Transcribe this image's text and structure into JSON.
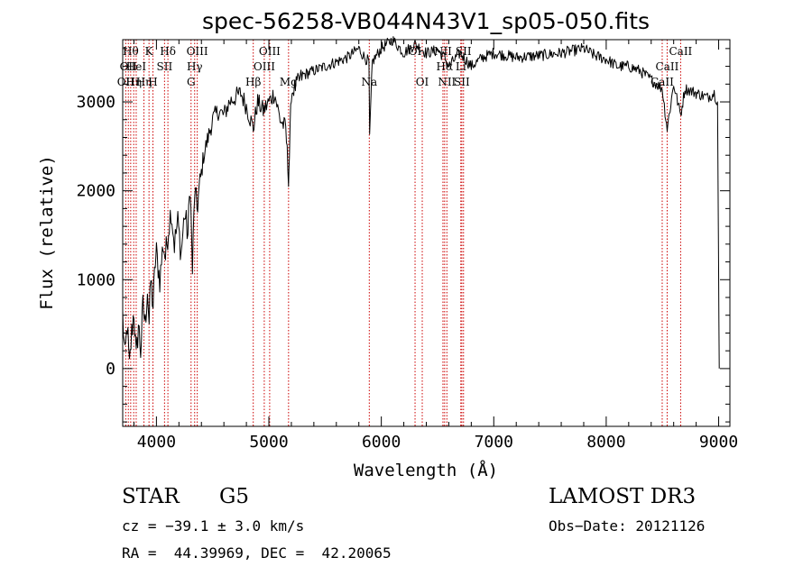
{
  "chart_data": {
    "type": "line",
    "title": "spec-56258-VB044N43V1_sp05-050.fits",
    "xlabel": "Wavelength (Å)",
    "ylabel": "Flux (relative)",
    "xlim": [
      3700,
      9100
    ],
    "ylim": [
      -650,
      3700
    ],
    "xticks": [
      4000,
      5000,
      6000,
      7000,
      8000,
      9000
    ],
    "yticks": [
      0,
      1000,
      2000,
      3000
    ],
    "grid": false,
    "series": [
      {
        "name": "spectrum",
        "x": [
          3700,
          3720,
          3740,
          3760,
          3780,
          3800,
          3820,
          3840,
          3860,
          3880,
          3900,
          3920,
          3935,
          3950,
          3970,
          3990,
          4000,
          4030,
          4060,
          4080,
          4100,
          4130,
          4160,
          4190,
          4220,
          4250,
          4280,
          4300,
          4320,
          4340,
          4360,
          4380,
          4420,
          4460,
          4500,
          4550,
          4600,
          4650,
          4700,
          4750,
          4800,
          4861,
          4900,
          4950,
          5000,
          5050,
          5100,
          5150,
          5175,
          5183,
          5200,
          5250,
          5300,
          5400,
          5500,
          5600,
          5700,
          5800,
          5850,
          5890,
          5896,
          5920,
          6000,
          6100,
          6200,
          6300,
          6400,
          6500,
          6563,
          6600,
          6700,
          6800,
          6900,
          7000,
          7200,
          7400,
          7600,
          7800,
          7900,
          8000,
          8100,
          8200,
          8300,
          8400,
          8498,
          8542,
          8600,
          8662,
          8700,
          8800,
          8900,
          8960,
          8990,
          9000,
          9005
        ],
        "y": [
          600,
          100,
          500,
          0,
          400,
          650,
          100,
          500,
          200,
          700,
          500,
          900,
          500,
          1000,
          700,
          1200,
          1300,
          1000,
          1400,
          1250,
          1500,
          1800,
          1400,
          1650,
          1300,
          1750,
          1500,
          2100,
          1100,
          2000,
          1800,
          2000,
          2400,
          2600,
          2800,
          2900,
          2850,
          3000,
          3050,
          3100,
          2950,
          2700,
          3000,
          2900,
          3000,
          3100,
          2800,
          2700,
          2150,
          2400,
          3100,
          3200,
          3300,
          3350,
          3400,
          3450,
          3500,
          3600,
          3500,
          3450,
          2600,
          3450,
          3600,
          3700,
          3550,
          3650,
          3550,
          3580,
          3500,
          3400,
          3550,
          3400,
          3500,
          3550,
          3500,
          3520,
          3550,
          3600,
          3520,
          3480,
          3400,
          3400,
          3350,
          3250,
          3150,
          2700,
          3200,
          2850,
          3150,
          3100,
          3050,
          3100,
          3000,
          1100,
          0
        ]
      }
    ],
    "lines": [
      {
        "wave": 3727,
        "label": "OII",
        "row": 3
      },
      {
        "wave": 3750,
        "label": "OII",
        "row": 2
      },
      {
        "wave": 3771,
        "label": "Hθ",
        "row": 1
      },
      {
        "wave": 3798,
        "label": "Hη",
        "row": 3
      },
      {
        "wave": 3820,
        "label": "HeI",
        "row": 2
      },
      {
        "wave": 3889,
        "label": "Hη",
        "row": 3
      },
      {
        "wave": 3934,
        "label": "K",
        "row": 1
      },
      {
        "wave": 3969,
        "label": "H",
        "row": 3
      },
      {
        "wave": 4072,
        "label": "SII",
        "row": 2
      },
      {
        "wave": 4102,
        "label": "Hδ",
        "row": 1
      },
      {
        "wave": 4308,
        "label": "G",
        "row": 3
      },
      {
        "wave": 4340,
        "label": "Hγ",
        "row": 2
      },
      {
        "wave": 4363,
        "label": "OIII",
        "row": 1
      },
      {
        "wave": 4861,
        "label": "Hβ",
        "row": 3
      },
      {
        "wave": 4959,
        "label": "OIII",
        "row": 2
      },
      {
        "wave": 5007,
        "label": "OIII",
        "row": 1
      },
      {
        "wave": 5175,
        "label": "Mg",
        "row": 3
      },
      {
        "wave": 5893,
        "label": "Na",
        "row": 3
      },
      {
        "wave": 6300,
        "label": "OI",
        "row": 1
      },
      {
        "wave": 6364,
        "label": "OI",
        "row": 3
      },
      {
        "wave": 6548,
        "label": "NII",
        "row": 1
      },
      {
        "wave": 6563,
        "label": "Hα",
        "row": 2
      },
      {
        "wave": 6583,
        "label": "NII",
        "row": 3
      },
      {
        "wave": 6707,
        "label": "Li",
        "row": 2
      },
      {
        "wave": 6716,
        "label": "SII",
        "row": 3
      },
      {
        "wave": 6731,
        "label": "SII",
        "row": 1
      },
      {
        "wave": 8498,
        "label": "CaII",
        "row": 3
      },
      {
        "wave": 8542,
        "label": "CaII",
        "row": 2
      },
      {
        "wave": 8662,
        "label": "CaII",
        "row": 1
      }
    ]
  },
  "info": {
    "class": "STAR",
    "subclass": "G5",
    "survey": "LAMOST DR3",
    "cz": "cz = −39.1 ± 3.0 km/s",
    "obs_date": "Obs−Date: 20121126",
    "coords": "RA =  44.39969, DEC =  42.20065"
  },
  "colors": {
    "spectrum": "#000000",
    "line_marker": "#cc0000",
    "axes": "#000000"
  }
}
